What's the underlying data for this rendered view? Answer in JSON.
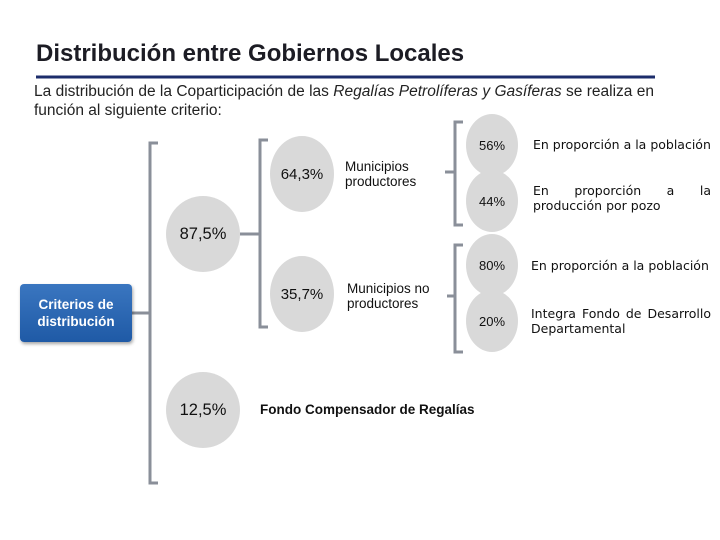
{
  "header": {
    "title": "Distribución entre Gobiernos Locales",
    "intro_before": "La distribución de la Coparticipación de las ",
    "intro_emphasis": "Regalías Petrolíferas y Gasíferas",
    "intro_after": " se realiza en función al siguiente criterio:"
  },
  "diagram": {
    "root": "Criterios de distribución",
    "branch_main": {
      "value": "87,5%",
      "producers": {
        "value": "64,3%",
        "label": "Municipios productores",
        "items": [
          {
            "value": "56%",
            "label": "En proporción a la población"
          },
          {
            "value": "44%",
            "label": "En proporción a la producción por pozo"
          }
        ]
      },
      "non_producers": {
        "value": "35,7%",
        "label": "Municipios no productores",
        "items": [
          {
            "value": "80%",
            "label": "En proporción a la población"
          },
          {
            "value": "20%",
            "label": "Integra Fondo de Desarrollo Departamental"
          }
        ]
      }
    },
    "branch_fund": {
      "value": "12,5%",
      "label": "Fondo Compensador de Regalías"
    }
  },
  "colors": {
    "bracket": "#8a8f99",
    "circle": "#d9d9d9",
    "title_rule": "#1c2d6b",
    "root_box": "#2a66b2"
  }
}
